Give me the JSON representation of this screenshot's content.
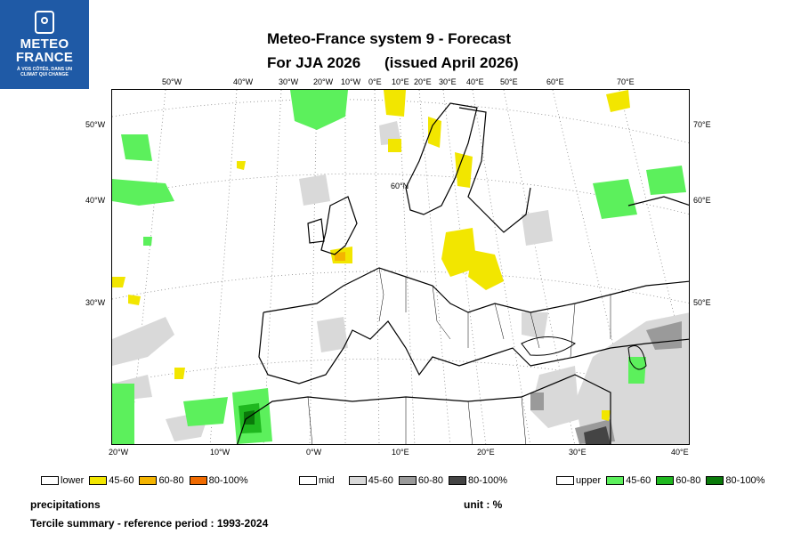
{
  "logo": {
    "line1": "METEO",
    "line2": "FRANCE",
    "tagline1": "À VOS CÔTÉS, DANS UN",
    "tagline2": "CLIMAT QUI CHANGE"
  },
  "title": {
    "line1": "Meteo-France system 9  -  Forecast",
    "line2a": "For JJA 2026",
    "line2b": "(issued April 2026)"
  },
  "map": {
    "top_lon_labels": [
      "50°W",
      "40°W",
      "30°W",
      "20°W",
      "10°W",
      "0°E",
      "10°E",
      "20°E",
      "30°E",
      "40°E",
      "50°E",
      "60°E",
      "70°E"
    ],
    "bottom_lon_labels": [
      "20°W",
      "10°W",
      "0°W",
      "10°E",
      "20°E",
      "30°E",
      "40°E"
    ],
    "left_lat_labels": [
      "50°W",
      "40°W",
      "30°W"
    ],
    "right_lat_labels": [
      "70°E",
      "60°E",
      "50°E"
    ],
    "inner_label": "60°N"
  },
  "legend": {
    "lower": {
      "label": "lower",
      "bins": [
        {
          "label": "45-60",
          "color": "#f2e600"
        },
        {
          "label": "60-80",
          "color": "#f4b400"
        },
        {
          "label": "80-100%",
          "color": "#f06a00"
        }
      ]
    },
    "mid": {
      "label": "mid",
      "bins": [
        {
          "label": "45-60",
          "color": "#d9d9d9"
        },
        {
          "label": "60-80",
          "color": "#9a9a9a"
        },
        {
          "label": "80-100%",
          "color": "#444444"
        }
      ]
    },
    "upper": {
      "label": "upper",
      "bins": [
        {
          "label": "45-60",
          "color": "#5cf05c"
        },
        {
          "label": "60-80",
          "color": "#1fb81f"
        },
        {
          "label": "80-100%",
          "color": "#0a7a0a"
        }
      ]
    }
  },
  "footer": {
    "variable": "precipitations",
    "unit": "unit : %",
    "summary": "Tercile summary - reference period : 1993-2024"
  }
}
